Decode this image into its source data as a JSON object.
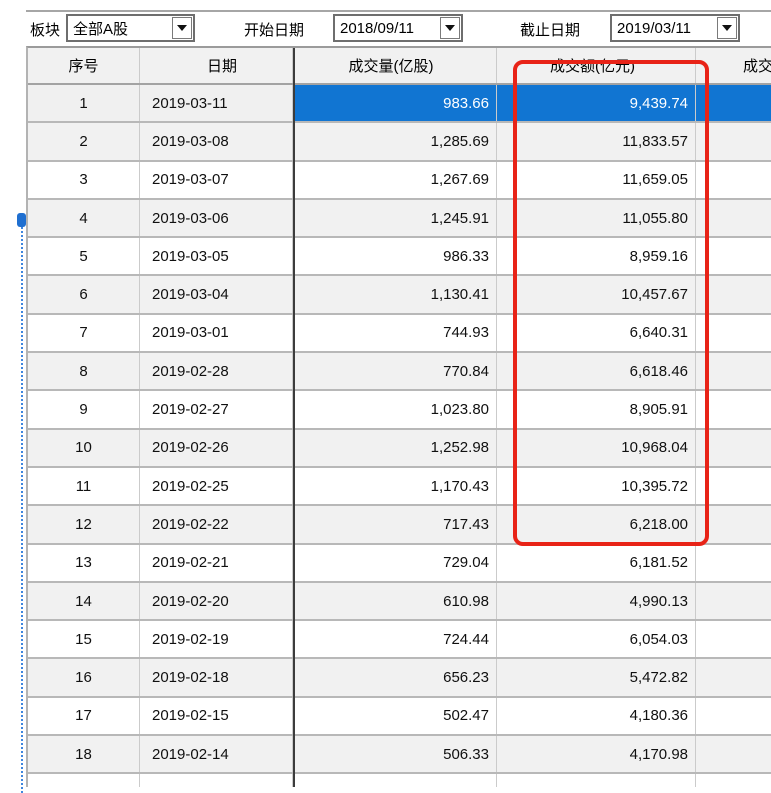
{
  "toolbar": {
    "sector_label": "板块",
    "sector_value": "全部A股",
    "start_label": "开始日期",
    "start_value": "2018/09/11",
    "end_label": "截止日期",
    "end_value": "2019/03/11"
  },
  "icons": {
    "dropdown": "chevron-down"
  },
  "colors": {
    "selection_blue": "#1175d2",
    "annotation_red": "#e82317",
    "alt_row_gray": "#f1f1f1"
  },
  "table": {
    "headers": [
      "序号",
      "日期",
      "成交量(亿股)",
      "成交额(亿元)",
      "成交"
    ],
    "rows": [
      {
        "no": "1",
        "date": "2019-03-11",
        "volume": "983.66",
        "turnover": "9,439.74",
        "selected": true
      },
      {
        "no": "2",
        "date": "2019-03-08",
        "volume": "1,285.69",
        "turnover": "11,833.57",
        "selected": false
      },
      {
        "no": "3",
        "date": "2019-03-07",
        "volume": "1,267.69",
        "turnover": "11,659.05",
        "selected": false
      },
      {
        "no": "4",
        "date": "2019-03-06",
        "volume": "1,245.91",
        "turnover": "11,055.80",
        "selected": false
      },
      {
        "no": "5",
        "date": "2019-03-05",
        "volume": "986.33",
        "turnover": "8,959.16",
        "selected": false
      },
      {
        "no": "6",
        "date": "2019-03-04",
        "volume": "1,130.41",
        "turnover": "10,457.67",
        "selected": false
      },
      {
        "no": "7",
        "date": "2019-03-01",
        "volume": "744.93",
        "turnover": "6,640.31",
        "selected": false
      },
      {
        "no": "8",
        "date": "2019-02-28",
        "volume": "770.84",
        "turnover": "6,618.46",
        "selected": false
      },
      {
        "no": "9",
        "date": "2019-02-27",
        "volume": "1,023.80",
        "turnover": "8,905.91",
        "selected": false
      },
      {
        "no": "10",
        "date": "2019-02-26",
        "volume": "1,252.98",
        "turnover": "10,968.04",
        "selected": false
      },
      {
        "no": "11",
        "date": "2019-02-25",
        "volume": "1,170.43",
        "turnover": "10,395.72",
        "selected": false
      },
      {
        "no": "12",
        "date": "2019-02-22",
        "volume": "717.43",
        "turnover": "6,218.00",
        "selected": false
      },
      {
        "no": "13",
        "date": "2019-02-21",
        "volume": "729.04",
        "turnover": "6,181.52",
        "selected": false
      },
      {
        "no": "14",
        "date": "2019-02-20",
        "volume": "610.98",
        "turnover": "4,990.13",
        "selected": false
      },
      {
        "no": "15",
        "date": "2019-02-19",
        "volume": "724.44",
        "turnover": "6,054.03",
        "selected": false
      },
      {
        "no": "16",
        "date": "2019-02-18",
        "volume": "656.23",
        "turnover": "5,472.82",
        "selected": false
      },
      {
        "no": "17",
        "date": "2019-02-15",
        "volume": "502.47",
        "turnover": "4,180.36",
        "selected": false
      },
      {
        "no": "18",
        "date": "2019-02-14",
        "volume": "506.33",
        "turnover": "4,170.98",
        "selected": false
      }
    ]
  }
}
